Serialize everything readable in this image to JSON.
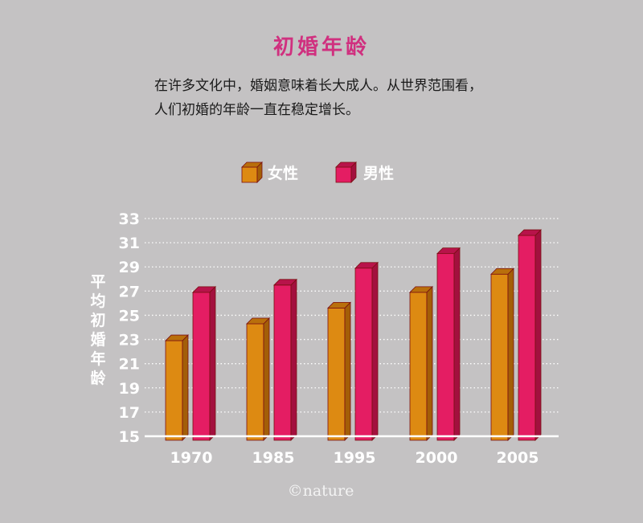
{
  "chart_data": {
    "type": "bar",
    "title": "初婚年龄",
    "subtitle_lines": [
      "在许多文化中，婚姻意味着长大成人。从世界范围看，",
      "人们初婚的年龄一直在稳定增长。"
    ],
    "ylabel": "平均初婚年龄",
    "xlabel": "",
    "categories": [
      "1970",
      "1985",
      "1995",
      "2000",
      "2005"
    ],
    "series": [
      {
        "name": "女性",
        "values": [
          22.9,
          24.3,
          25.6,
          26.9,
          28.4
        ]
      },
      {
        "name": "男性",
        "values": [
          26.9,
          27.5,
          28.9,
          30.1,
          31.6
        ]
      }
    ],
    "ylim": [
      15,
      33
    ],
    "yticks": [
      15,
      17,
      19,
      21,
      23,
      25,
      27,
      29,
      31,
      33
    ],
    "grid": true,
    "legend_position": "top"
  },
  "colors": {
    "female_front": "#dd8a12",
    "female_side": "#a35e07",
    "female_top": "#b96f0b",
    "male_front": "#e41d63",
    "male_side": "#a3103e",
    "male_top": "#b8134a",
    "dark_outline": "#7a0f12"
  },
  "credit": "©nature"
}
